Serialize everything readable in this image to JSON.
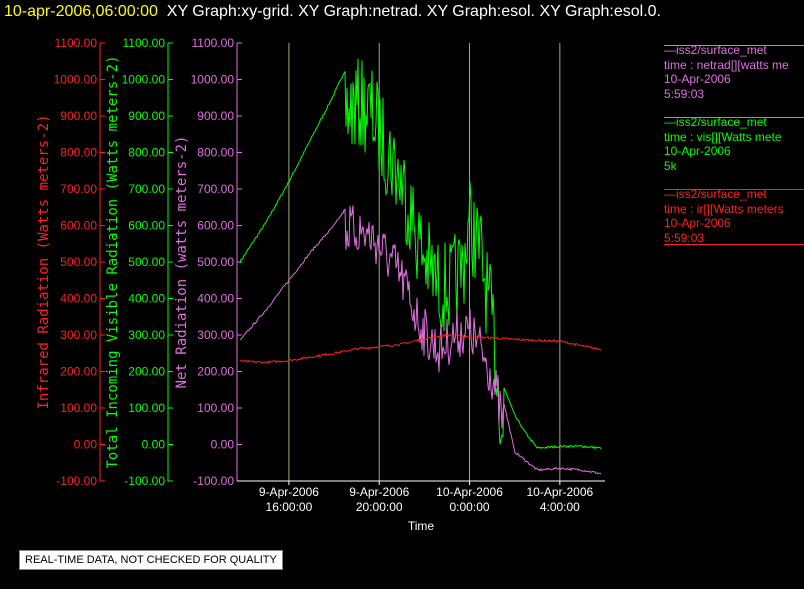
{
  "header": {
    "timestamp": "10-apr-2006,06:00:00",
    "graphs": "XY Graph:xy-grid.  XY Graph:netrad.  XY Graph:esol.  XY Graph:esol.0."
  },
  "notice": "REAL-TIME DATA, NOT CHECKED FOR QUALITY",
  "colors": {
    "ir": "#ff2020",
    "vis": "#00ff00",
    "net": "#e070e0",
    "axis": "#ffffff",
    "grid": "#cfe8a0"
  },
  "legend": [
    {
      "color": "#e070e0",
      "lines": [
        "—iss2/surface_met",
        "time : netrad[][watts me",
        "10-Apr-2006",
        "5:59:03"
      ]
    },
    {
      "color": "#00ff00",
      "lines": [
        "—iss2/surface_met",
        "time : vis[][Watts mete",
        "10-Apr-2006",
        "5k"
      ]
    },
    {
      "color": "#ff2020",
      "lines": [
        "—iss2/surface_met",
        "time : ir[][Watts meters",
        "10-Apr-2006",
        "5:59:03"
      ]
    }
  ],
  "chart_data": {
    "type": "line",
    "xlabel": "Time",
    "xlim": [
      "2006-04-09 13:50",
      "2006-04-10 06:00"
    ],
    "x_ticks": [
      {
        "value": "2006-04-09 16:00",
        "label": [
          "9-Apr-2006",
          "16:00:00"
        ]
      },
      {
        "value": "2006-04-09 20:00",
        "label": [
          "9-Apr-2006",
          "20:00:00"
        ]
      },
      {
        "value": "2006-04-10 00:00",
        "label": [
          "10-Apr-2006",
          "0:00:00"
        ]
      },
      {
        "value": "2006-04-10 04:00",
        "label": [
          "10-Apr-2006",
          "4:00:00"
        ]
      }
    ],
    "grid_x": true,
    "axes": [
      {
        "id": "ir",
        "label": "Infrared Radiation (Watts meters-2)",
        "ylim": [
          -100,
          1100
        ],
        "ticks": [
          "-100.00",
          "0.00",
          "100.00",
          "200.00",
          "300.00",
          "400.00",
          "500.00",
          "600.00",
          "700.00",
          "800.00",
          "900.00",
          "1000.00",
          "1100.00"
        ]
      },
      {
        "id": "vis",
        "label": "Total Incoming Visible Radiation (Watts meters-2)",
        "ylim": [
          -100,
          1100
        ],
        "ticks": [
          "-100.00",
          "0.00",
          "100.00",
          "200.00",
          "300.00",
          "400.00",
          "500.00",
          "600.00",
          "700.00",
          "800.00",
          "900.00",
          "1000.00",
          "1100.00"
        ]
      },
      {
        "id": "net",
        "label": "Net Radiation (watts meters-2)",
        "ylim": [
          -100,
          1100
        ],
        "ticks": [
          "-100.00",
          "0.00",
          "100.00",
          "200.00",
          "300.00",
          "400.00",
          "500.00",
          "600.00",
          "700.00",
          "800.00",
          "900.00",
          "1000.00",
          "1100.00"
        ]
      }
    ],
    "series": [
      {
        "name": "vis",
        "axis": "vis",
        "noisy": true,
        "x": [
          "2006-04-09 13:50",
          "2006-04-09 15:00",
          "2006-04-09 16:00",
          "2006-04-09 17:00",
          "2006-04-09 18:00",
          "2006-04-09 18:40",
          "2006-04-09 19:10",
          "2006-04-09 19:40",
          "2006-04-09 20:10",
          "2006-04-09 20:40",
          "2006-04-09 21:10",
          "2006-04-09 21:40",
          "2006-04-09 22:10",
          "2006-04-09 22:40",
          "2006-04-09 23:10",
          "2006-04-09 23:40",
          "2006-04-10 00:00",
          "2006-04-10 00:30",
          "2006-04-10 01:00",
          "2006-04-10 01:30",
          "2006-04-10 02:00",
          "2006-04-10 02:30",
          "2006-04-10 03:00",
          "2006-04-10 04:00",
          "2006-04-10 05:00",
          "2006-04-10 05:50"
        ],
        "y": [
          500,
          610,
          720,
          840,
          960,
          1050,
          1060,
          1040,
          960,
          900,
          820,
          700,
          620,
          560,
          560,
          610,
          740,
          650,
          460,
          160,
          80,
          30,
          -10,
          -5,
          -5,
          -10
        ]
      },
      {
        "name": "net",
        "axis": "net",
        "noisy": true,
        "x": [
          "2006-04-09 13:50",
          "2006-04-09 15:00",
          "2006-04-09 16:00",
          "2006-04-09 17:00",
          "2006-04-09 18:00",
          "2006-04-09 18:40",
          "2006-04-09 19:10",
          "2006-04-09 19:40",
          "2006-04-09 20:10",
          "2006-04-09 20:40",
          "2006-04-09 21:10",
          "2006-04-09 21:40",
          "2006-04-09 22:10",
          "2006-04-09 22:40",
          "2006-04-09 23:10",
          "2006-04-09 23:40",
          "2006-04-10 00:00",
          "2006-04-10 00:30",
          "2006-04-10 01:00",
          "2006-04-10 01:30",
          "2006-04-10 02:00",
          "2006-04-10 03:00",
          "2006-04-10 04:00",
          "2006-04-10 05:00",
          "2006-04-10 05:50"
        ],
        "y": [
          285,
          370,
          450,
          530,
          600,
          660,
          655,
          640,
          600,
          560,
          500,
          420,
          360,
          330,
          360,
          380,
          380,
          330,
          260,
          120,
          -20,
          -70,
          -65,
          -70,
          -80
        ]
      },
      {
        "name": "ir",
        "axis": "ir",
        "noisy": false,
        "x": [
          "2006-04-09 13:50",
          "2006-04-09 15:00",
          "2006-04-09 16:00",
          "2006-04-09 17:00",
          "2006-04-09 18:00",
          "2006-04-09 19:00",
          "2006-04-09 20:00",
          "2006-04-09 21:00",
          "2006-04-09 22:00",
          "2006-04-09 23:00",
          "2006-04-10 00:00",
          "2006-04-10 01:00",
          "2006-04-10 02:00",
          "2006-04-10 03:00",
          "2006-04-10 04:00",
          "2006-04-10 05:00",
          "2006-04-10 05:50"
        ],
        "y": [
          228,
          225,
          230,
          240,
          250,
          262,
          268,
          275,
          290,
          300,
          295,
          292,
          288,
          285,
          283,
          270,
          260
        ]
      }
    ]
  }
}
